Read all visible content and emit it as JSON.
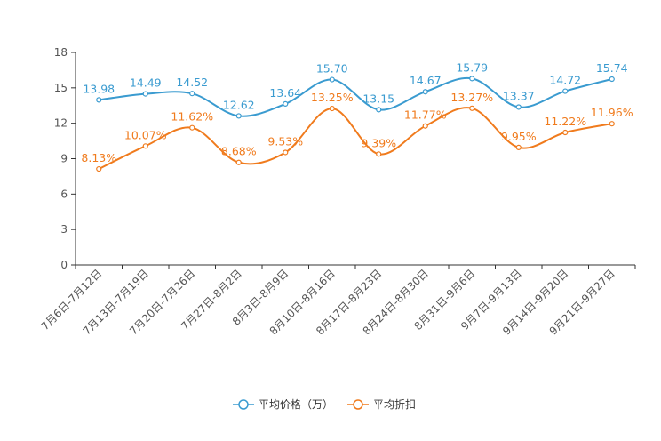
{
  "chart_data": {
    "type": "line",
    "title": "",
    "xlabel": "",
    "ylabel": "",
    "ylim": [
      0,
      18
    ],
    "yticks": [
      0,
      3,
      6,
      9,
      12,
      15,
      18
    ],
    "yticklabels": [
      "0",
      "3",
      "6",
      "9",
      "12",
      "15",
      "18"
    ],
    "categories": [
      "7月6日-7月12日",
      "7月13日-7月19日",
      "7月20日-7月26日",
      "7月27日-8月2日",
      "8月3日-8月9日",
      "8月10日-8月16日",
      "8月17日-8月23日",
      "8月24日-8月30日",
      "8月31日-9月6日",
      "9月7日-9月13日",
      "9月14日-9月20日",
      "9月21日-9月27日"
    ],
    "legend_position": "bottom",
    "series": [
      {
        "name": "平均价格（万）",
        "color": "#3a9bd0",
        "values": [
          13.98,
          14.49,
          14.52,
          12.62,
          13.64,
          15.7,
          13.15,
          14.67,
          15.79,
          13.37,
          14.72,
          15.74
        ],
        "labels": [
          "13.98",
          "14.49",
          "14.52",
          "12.62",
          "13.64",
          "15.70",
          "13.15",
          "14.67",
          "15.79",
          "13.37",
          "14.72",
          "15.74"
        ]
      },
      {
        "name": "平均折扣",
        "color": "#f07b1d",
        "values": [
          8.13,
          10.07,
          11.62,
          8.68,
          9.53,
          13.25,
          9.39,
          11.77,
          13.27,
          9.95,
          11.22,
          11.96
        ],
        "labels": [
          "8.13%",
          "10.07%",
          "11.62%",
          "8.68%",
          "9.53%",
          "13.25%",
          "9.39%",
          "11.77%",
          "13.27%",
          "9.95%",
          "11.22%",
          "11.96%"
        ]
      }
    ]
  }
}
